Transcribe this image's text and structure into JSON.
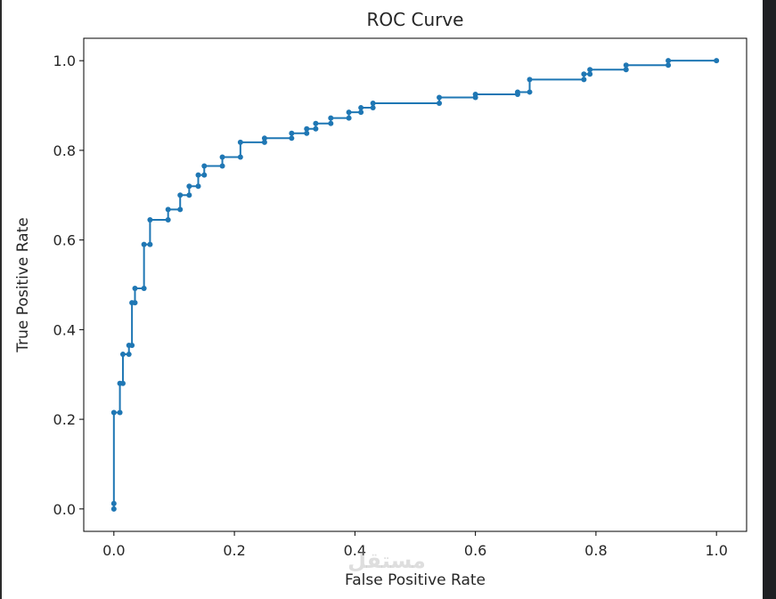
{
  "chart_data": {
    "type": "line",
    "title": "ROC Curve",
    "xlabel": "False Positive Rate",
    "ylabel": "True Positive Rate",
    "xlim": [
      -0.05,
      1.05
    ],
    "ylim": [
      -0.05,
      1.05
    ],
    "xticks": [
      "0.0",
      "0.2",
      "0.4",
      "0.6",
      "0.8",
      "1.0"
    ],
    "yticks": [
      "0.0",
      "0.2",
      "0.4",
      "0.6",
      "0.8",
      "1.0"
    ],
    "grid": false,
    "series": [
      {
        "color": "#1f77b4",
        "marker": "circle",
        "x": [
          0.0,
          0.0,
          0.0,
          0.01,
          0.01,
          0.015,
          0.015,
          0.025,
          0.025,
          0.03,
          0.03,
          0.035,
          0.035,
          0.05,
          0.05,
          0.06,
          0.06,
          0.09,
          0.09,
          0.11,
          0.11,
          0.125,
          0.125,
          0.14,
          0.14,
          0.15,
          0.15,
          0.18,
          0.18,
          0.21,
          0.21,
          0.25,
          0.25,
          0.295,
          0.295,
          0.32,
          0.32,
          0.335,
          0.335,
          0.36,
          0.36,
          0.39,
          0.39,
          0.41,
          0.41,
          0.43,
          0.43,
          0.54,
          0.54,
          0.6,
          0.6,
          0.67,
          0.67,
          0.69,
          0.69,
          0.78,
          0.78,
          0.79,
          0.79,
          0.85,
          0.85,
          0.92,
          0.92,
          1.0
        ],
        "y": [
          0.0,
          0.012,
          0.215,
          0.215,
          0.28,
          0.28,
          0.345,
          0.345,
          0.365,
          0.365,
          0.46,
          0.46,
          0.492,
          0.492,
          0.59,
          0.59,
          0.645,
          0.645,
          0.668,
          0.668,
          0.7,
          0.7,
          0.72,
          0.72,
          0.745,
          0.745,
          0.765,
          0.765,
          0.785,
          0.785,
          0.818,
          0.818,
          0.827,
          0.827,
          0.838,
          0.838,
          0.848,
          0.848,
          0.86,
          0.86,
          0.872,
          0.872,
          0.885,
          0.885,
          0.895,
          0.895,
          0.905,
          0.905,
          0.918,
          0.918,
          0.925,
          0.925,
          0.93,
          0.93,
          0.958,
          0.958,
          0.97,
          0.97,
          0.98,
          0.98,
          0.99,
          0.99,
          1.0,
          1.0
        ]
      }
    ]
  },
  "watermark": "مستقل"
}
